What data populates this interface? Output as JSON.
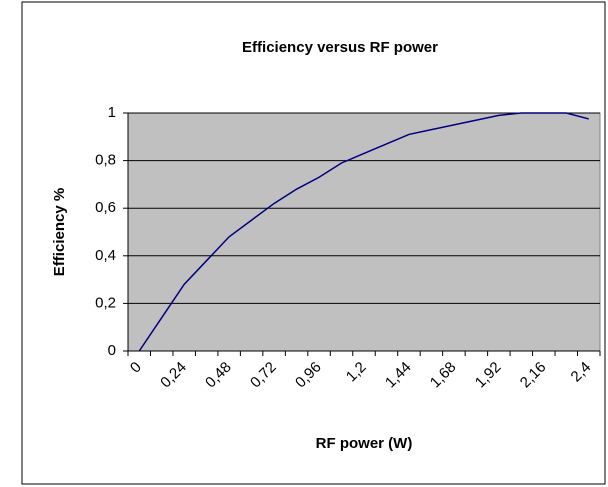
{
  "chart_data": {
    "type": "line",
    "title": "Efficiency versus RF power",
    "x_label": "RF power (W)",
    "y_label": "Efficiency %",
    "categories": [
      "0",
      null,
      "0,24",
      null,
      "0,48",
      null,
      "0,72",
      null,
      "0,96",
      null,
      "1,2",
      null,
      "1,44",
      null,
      "1,68",
      null,
      "1,92",
      null,
      "2,16",
      null,
      "2,4"
    ],
    "series": [
      {
        "name": "Efficiency",
        "color": "#000080",
        "values": [
          0,
          0.14,
          0.28,
          0.38,
          0.48,
          0.55,
          0.62,
          0.68,
          0.73,
          0.79,
          0.83,
          0.87,
          0.91,
          0.93,
          0.95,
          0.97,
          0.99,
          1.0,
          1.0,
          1.0,
          0.975
        ]
      }
    ],
    "ylim": [
      0,
      1
    ],
    "yticks": [
      0,
      {
        "value": 0.2,
        "label": "0,2"
      },
      {
        "value": 0.4,
        "label": "0,4"
      },
      {
        "value": 0.6,
        "label": "0,6"
      },
      {
        "value": 0.8,
        "label": "0,8"
      },
      1
    ],
    "grid": true,
    "plot_background": "#c0c0c0"
  }
}
